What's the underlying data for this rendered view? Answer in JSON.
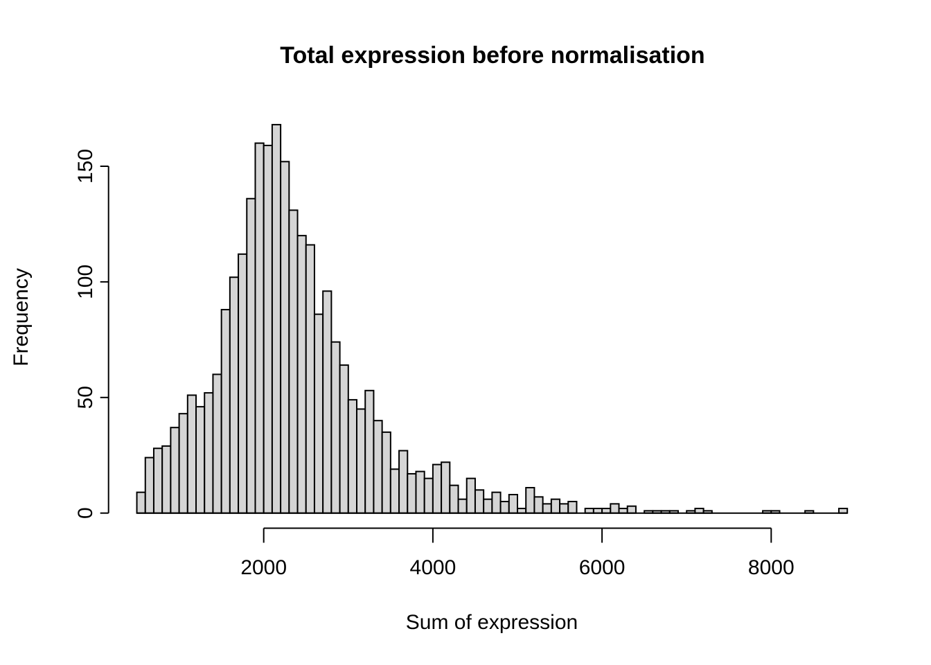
{
  "chart_data": {
    "type": "bar",
    "subtype": "histogram",
    "title": "Total expression before normalisation",
    "xlabel": "Sum of expression",
    "ylabel": "Frequency",
    "bin_start": 500,
    "bin_width": 100,
    "values": [
      9,
      24,
      28,
      29,
      37,
      43,
      51,
      46,
      52,
      60,
      88,
      102,
      112,
      136,
      160,
      159,
      168,
      152,
      131,
      120,
      116,
      86,
      96,
      74,
      64,
      49,
      45,
      53,
      40,
      35,
      19,
      27,
      17,
      18,
      15,
      21,
      22,
      12,
      6,
      15,
      10,
      6,
      9,
      5,
      8,
      2,
      11,
      7,
      4,
      6,
      4,
      5,
      0,
      2,
      2,
      2,
      4,
      2,
      3,
      0,
      1,
      1,
      1,
      1,
      0,
      1,
      2,
      1,
      0,
      0,
      0,
      0,
      0,
      0,
      1,
      1,
      0,
      0,
      0,
      1,
      0,
      0,
      0,
      2
    ],
    "x_ticks": [
      2000,
      4000,
      6000,
      8000
    ],
    "y_ticks": [
      0,
      50,
      100,
      150
    ],
    "xlim": [
      500,
      8900
    ],
    "ylim": [
      0,
      150
    ],
    "grid": false,
    "legend": null,
    "bar_fill": "#d5d5d5",
    "bar_stroke": "#000000",
    "axis_color": "#000000",
    "background": "#ffffff"
  }
}
